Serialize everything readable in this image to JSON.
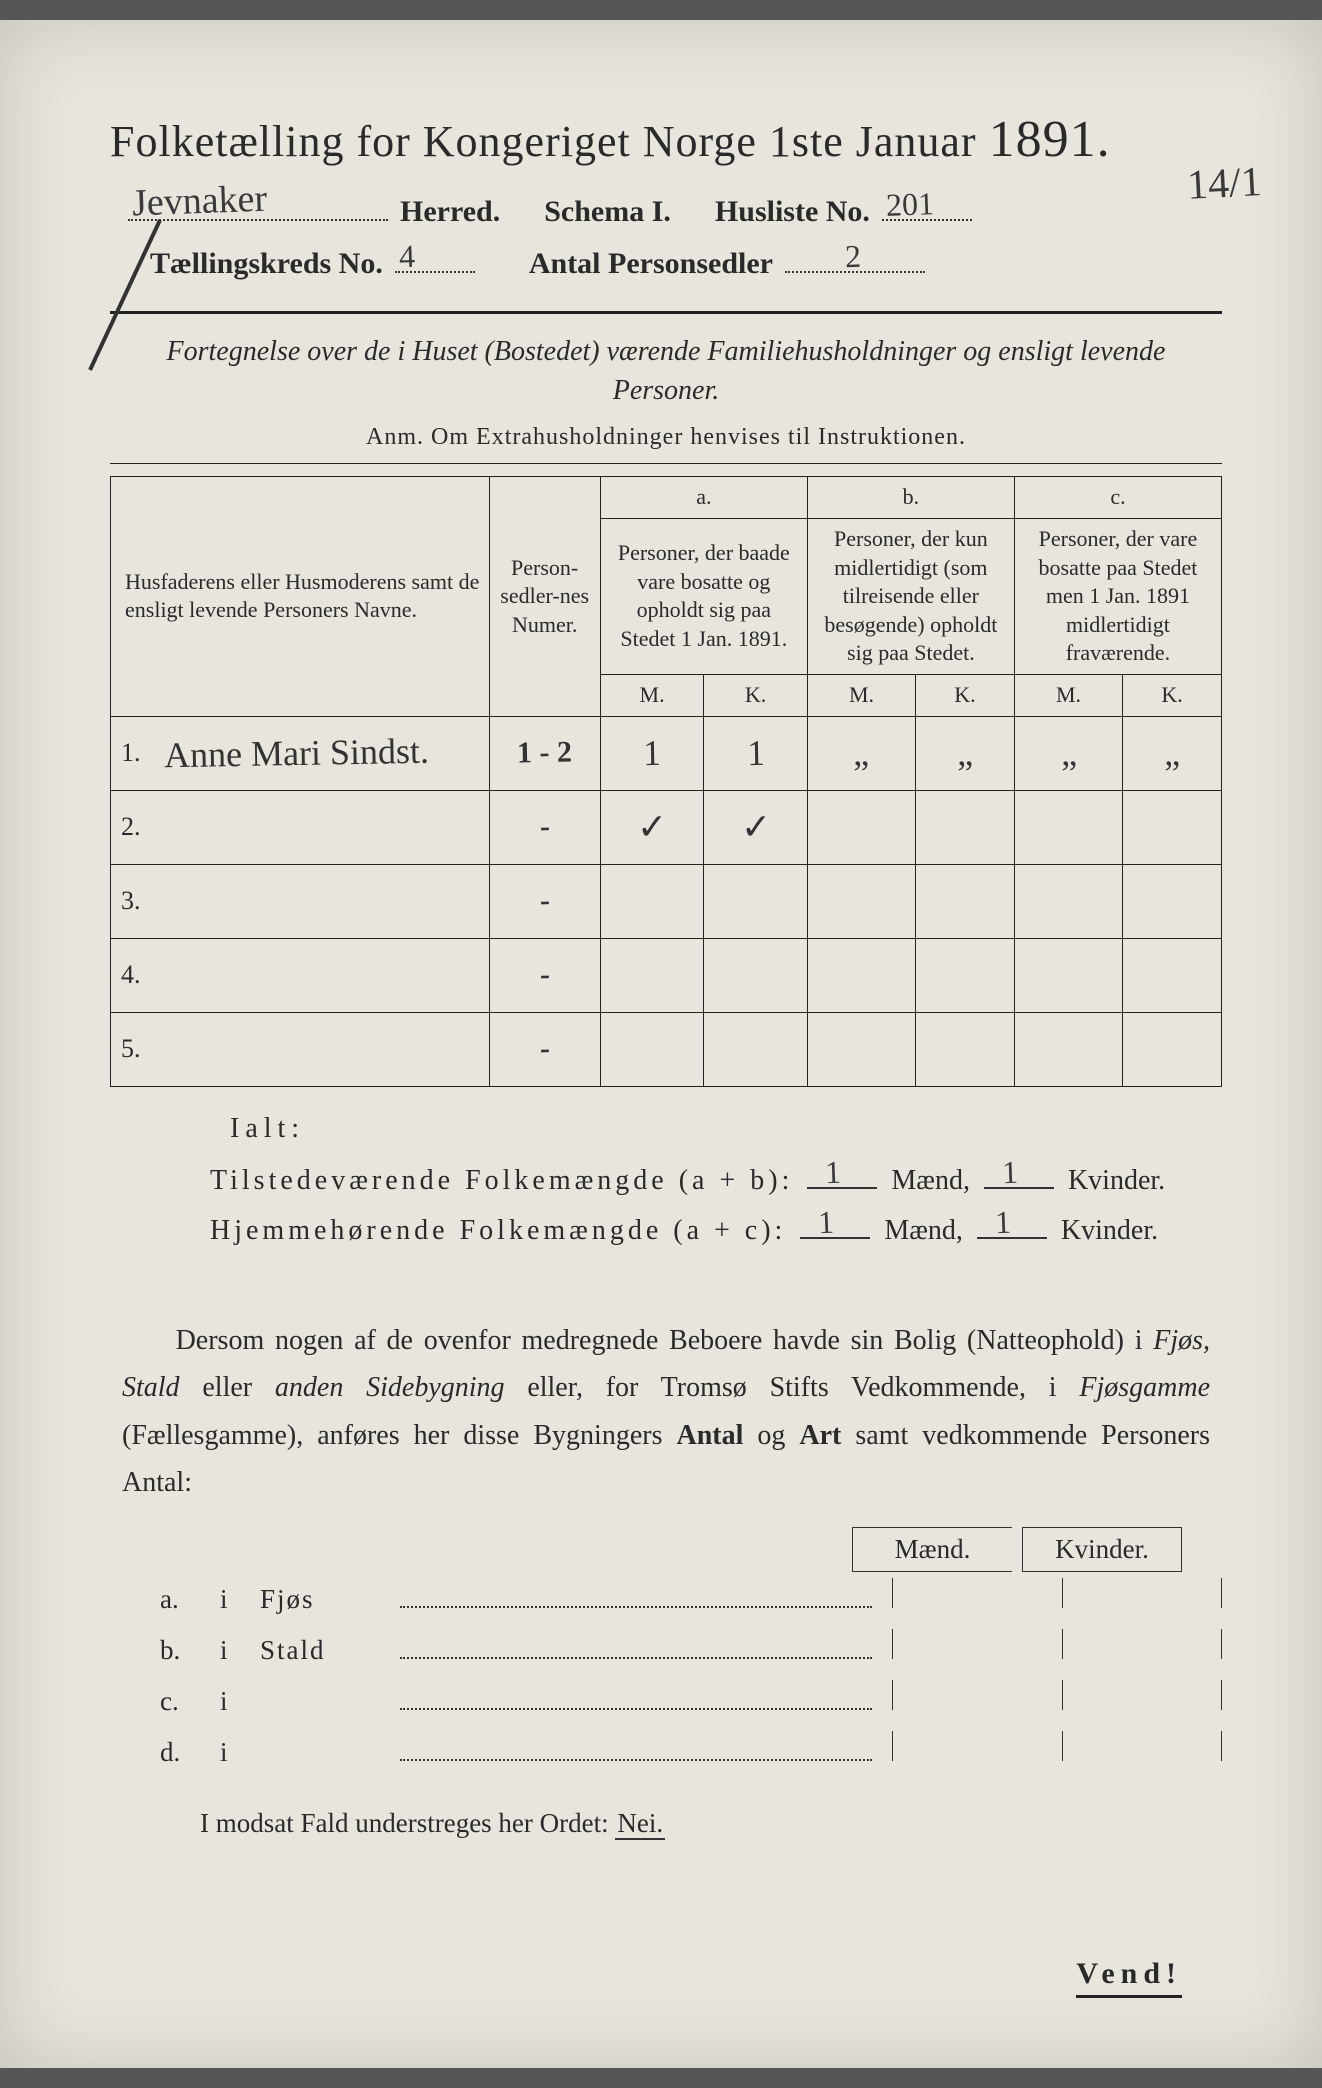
{
  "colors": {
    "paper": "#e8e5dc",
    "ink": "#2a2a2a",
    "handwriting": "#3a3a3a",
    "border": "#222222"
  },
  "title": {
    "text": "Folketælling for Kongeriget Norge 1ste Januar",
    "year": "1891."
  },
  "header": {
    "herred_hw": "Jevnaker",
    "herred_label": "Herred.",
    "schema_label": "Schema I.",
    "husliste_label": "Husliste No.",
    "husliste_hw": "201",
    "marginal_hw": "14/1",
    "kreds_label": "Tællingskreds No.",
    "kreds_hw": "4",
    "antal_label": "Antal Personsedler",
    "antal_hw": "2"
  },
  "intro": {
    "italic": "Fortegnelse over de i Huset (Bostedet) værende Familiehusholdninger og ensligt levende Personer.",
    "anm": "Anm.  Om Extrahusholdninger henvises til Instruktionen."
  },
  "table": {
    "col_name": "Husfaderens eller Husmoderens samt de ensligt levende Personers Navne.",
    "col_num": "Person-sedler-nes Numer.",
    "col_a_hdr": "a.",
    "col_a": "Personer, der baade vare bosatte og opholdt sig paa Stedet 1 Jan. 1891.",
    "col_b_hdr": "b.",
    "col_b": "Personer, der kun midlertidigt (som tilreisende eller besøgende) opholdt sig paa Stedet.",
    "col_c_hdr": "c.",
    "col_c": "Personer, der vare bosatte paa Stedet men 1 Jan. 1891 midlertidigt fraværende.",
    "mk_m": "M.",
    "mk_k": "K.",
    "rows": [
      {
        "n": "1.",
        "name_hw": "Anne Mari Sindst.",
        "num_hw": "1 - 2",
        "am": "1",
        "ak": "1",
        "bm": "„",
        "bk": "„",
        "cm": "„",
        "ck": "„"
      },
      {
        "n": "2.",
        "name_hw": "",
        "num_hw": "-",
        "am": "✓",
        "ak": "✓",
        "bm": "",
        "bk": "",
        "cm": "",
        "ck": ""
      },
      {
        "n": "3.",
        "name_hw": "",
        "num_hw": "-",
        "am": "",
        "ak": "",
        "bm": "",
        "bk": "",
        "cm": "",
        "ck": ""
      },
      {
        "n": "4.",
        "name_hw": "",
        "num_hw": "-",
        "am": "",
        "ak": "",
        "bm": "",
        "bk": "",
        "cm": "",
        "ck": ""
      },
      {
        "n": "5.",
        "name_hw": "",
        "num_hw": "-",
        "am": "",
        "ak": "",
        "bm": "",
        "bk": "",
        "cm": "",
        "ck": ""
      }
    ]
  },
  "ialt": {
    "title": "Ialt:",
    "row1_label": "Tilstedeværende Folkemængde (a + b):",
    "row2_label": "Hjemmehørende Folkemængde (a + c):",
    "maend": "Mænd,",
    "kvinder": "Kvinder.",
    "r1m": "1",
    "r1k": "1",
    "r2m": "1",
    "r2k": "1"
  },
  "para": "Dersom nogen af de ovenfor medregnede Beboere havde sin Bolig (Natteophold) i Fjøs, Stald eller anden Sidebygning eller, for Tromsø Stifts Vedkommende, i Fjøsgamme (Fællesgamme), anføres her disse Bygningers Antal og Art samt vedkommende Personers Antal:",
  "abcd": {
    "hdr_m": "Mænd.",
    "hdr_k": "Kvinder.",
    "rows": [
      {
        "l": "a.",
        "i": "i",
        "w": "Fjøs"
      },
      {
        "l": "b.",
        "i": "i",
        "w": "Stald"
      },
      {
        "l": "c.",
        "i": "i",
        "w": ""
      },
      {
        "l": "d.",
        "i": "i",
        "w": ""
      }
    ]
  },
  "nei": "I modsat Fald understreges her Ordet: ",
  "nei_word": "Nei.",
  "vend": "Vend!"
}
